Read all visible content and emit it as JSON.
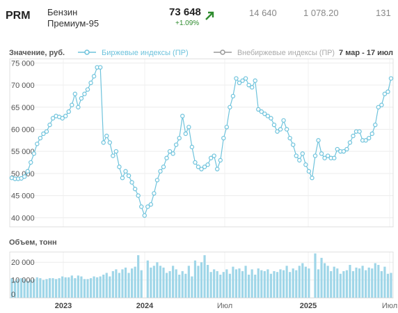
{
  "header": {
    "ticker": "PRM",
    "product": "Бензин",
    "grade": "Премиум-95",
    "price": "73 648",
    "change": "+1.09%",
    "trend_icon": "arrow-up-right-icon",
    "stats": [
      "14 640",
      "1 078.20",
      "131"
    ],
    "accent_color": "#2e8b2e"
  },
  "chart_data": {
    "type": "line",
    "ylabel": "Значение, руб.",
    "volume_label": "Объем, тонн",
    "date_range": "7 мар - 17 июл",
    "legend": [
      "Биржевые индексы (ПР)",
      "Внебиржевые индексы (ПР)"
    ],
    "legend_placement": "top",
    "grid": true,
    "line_color": "#6ec3dc",
    "bar_color": "#9fd6e8",
    "offexchange_color": "#999999",
    "ylim": [
      40000,
      78000
    ],
    "yticks": [
      "40 000",
      "45 000",
      "50 000",
      "55 000",
      "60 000",
      "65 000",
      "70 000",
      "75 000"
    ],
    "volume_ylim": [
      0,
      26000
    ],
    "volume_yticks": [
      "0",
      "10 000",
      "20 000"
    ],
    "xticks": [
      "2023",
      "2024",
      "Июл",
      "2025",
      "Июл"
    ],
    "series": [
      {
        "name": "Биржевые индексы (ПР)",
        "values": [
          51000,
          50800,
          50800,
          50900,
          51300,
          52500,
          54500,
          56500,
          58700,
          60000,
          61000,
          61500,
          63000,
          64500,
          65000,
          64800,
          64500,
          65000,
          66000,
          67500,
          70000,
          67000,
          69000,
          70000,
          71000,
          72500,
          74000,
          76000,
          76000,
          59000,
          60500,
          59000,
          56000,
          57000,
          53500,
          51000,
          52500,
          51500,
          50000,
          48500,
          47000,
          44500,
          42500,
          44500,
          45000,
          47500,
          50500,
          52500,
          53500,
          55500,
          57000,
          56500,
          58500,
          60000,
          65000,
          61000,
          62500,
          58000,
          54500,
          53500,
          53000,
          53500,
          54000,
          55500,
          56000,
          53000,
          55000,
          60000,
          62500,
          67000,
          69500,
          73500,
          72500,
          73000,
          73500,
          72000,
          71500,
          73000,
          66500,
          66000,
          65500,
          65000,
          64500,
          63000,
          61500,
          62000,
          64000,
          62000,
          60000,
          58500,
          56000,
          55000,
          56500,
          54000,
          52500,
          51000,
          56000,
          59500,
          56500,
          55500,
          56000,
          55500,
          55500,
          57500,
          57000,
          57000,
          57500,
          59000,
          60500,
          61500,
          61500,
          59500,
          59500,
          60000,
          61000,
          63000,
          67000,
          67500,
          70000,
          70500,
          73500
        ]
      }
    ],
    "volume": [
      11000,
      9500,
      10500,
      11000,
      10500,
      9500,
      10000,
      10500,
      11500,
      11000,
      10000,
      10500,
      11000,
      11000,
      10500,
      11000,
      12000,
      11500,
      11500,
      12500,
      11000,
      12500,
      12000,
      10500,
      10500,
      11000,
      12000,
      11500,
      12000,
      13000,
      14000,
      12000,
      15000,
      16000,
      14000,
      16000,
      17000,
      14000,
      16500,
      17500,
      24000,
      15500,
      0,
      21000,
      17000,
      18000,
      20000,
      18000,
      17000,
      14000,
      15000,
      18000,
      16000,
      13000,
      15000,
      13500,
      18000,
      12000,
      21000,
      18000,
      20000,
      24000,
      18500,
      14500,
      16000,
      15000,
      13000,
      14500,
      16000,
      13500,
      17500,
      16000,
      16500,
      15000,
      18000,
      13000,
      16000,
      13000,
      16500,
      15500,
      15000,
      16000,
      13500,
      15000,
      14500,
      16000,
      15500,
      18000,
      14500,
      16500,
      15500,
      18000,
      19500,
      17500,
      16500,
      0,
      25000,
      16000,
      22500,
      19500,
      18000,
      15000,
      17500,
      16500,
      13500,
      15000,
      15500,
      18500,
      15000,
      17000,
      16500,
      18000,
      15500,
      17000,
      16500,
      19500,
      18500,
      15000,
      17500,
      13500,
      14000
    ]
  }
}
